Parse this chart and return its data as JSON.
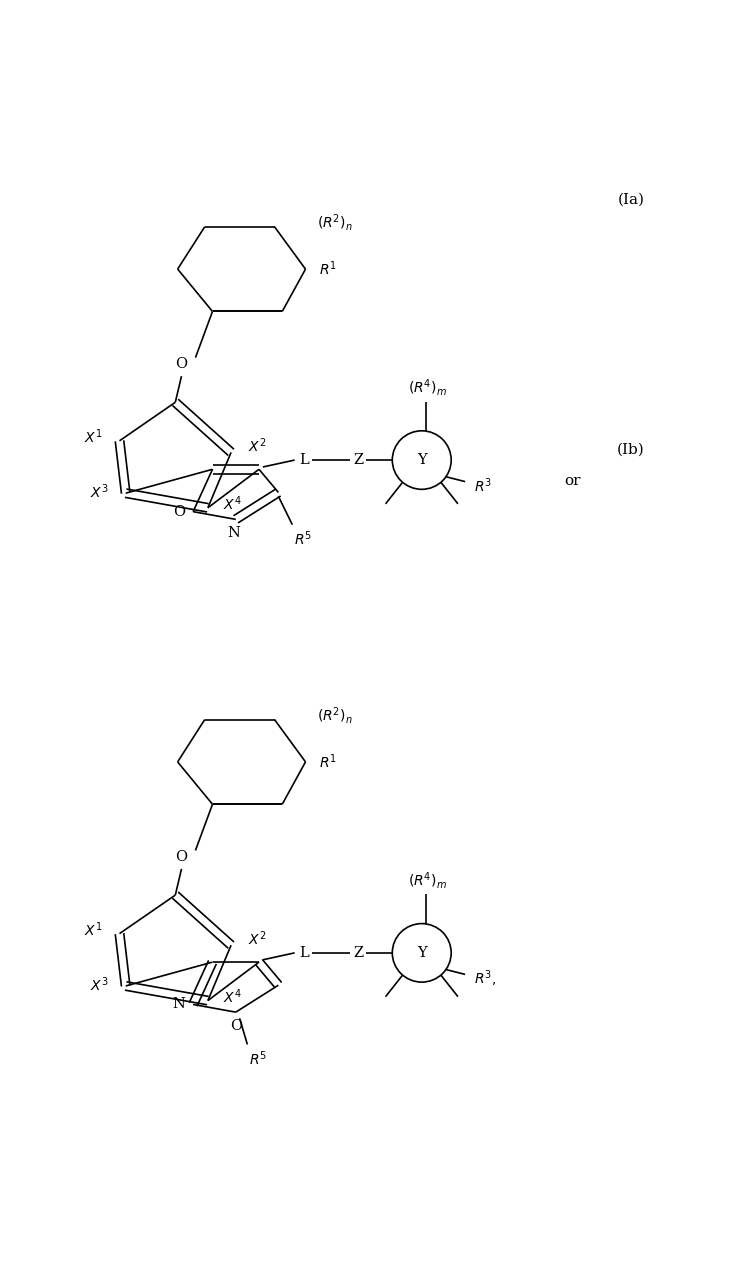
{
  "background_color": "#ffffff",
  "line_color": "#000000",
  "text_color": "#000000",
  "figsize": [
    7.39,
    12.8
  ],
  "dpi": 100,
  "label_Ia": "(Ia)",
  "label_Ib": "(Ib)",
  "label_or": "or"
}
